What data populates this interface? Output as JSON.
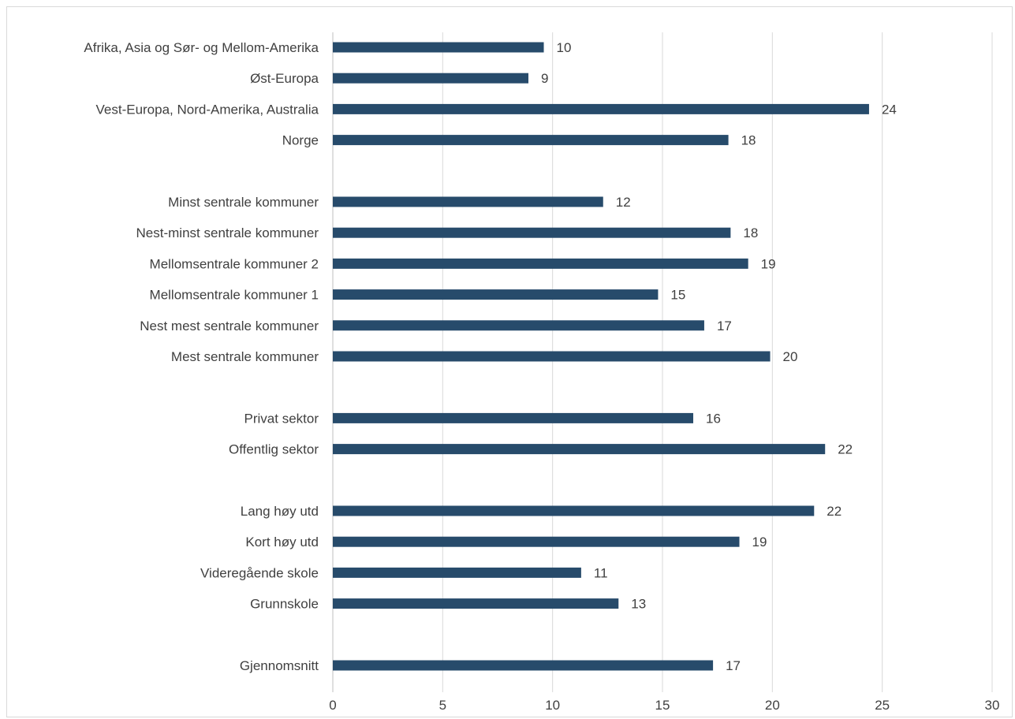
{
  "chart_data": {
    "type": "bar",
    "orientation": "horizontal",
    "colors": {
      "bar": "#274b6b",
      "grid": "#d9d9d9",
      "text": "#404040",
      "border": "#d9d9d9"
    },
    "grid": true,
    "legend": "none",
    "xlim": [
      0,
      30
    ],
    "x_ticks": [
      0,
      5,
      10,
      15,
      20,
      25,
      30
    ],
    "categories": [
      "Afrika, Asia og Sør- og Mellom-Amerika",
      "Øst-Europa",
      "Vest-Europa, Nord-Amerika, Australia",
      "Norge",
      "",
      "Minst sentrale kommuner",
      "Nest-minst sentrale kommuner",
      "Mellomsentrale kommuner 2",
      "Mellomsentrale kommuner 1",
      "Nest mest sentrale kommuner",
      "Mest sentrale kommuner",
      "",
      "Privat sektor",
      "Offentlig sektor",
      "",
      "Lang høy utd",
      "Kort høy utd",
      "Videregående skole",
      "Grunnskole",
      "",
      "Gjennomsnitt"
    ],
    "values": [
      9.6,
      8.9,
      24.4,
      18.0,
      null,
      12.3,
      18.1,
      18.9,
      14.8,
      16.9,
      19.9,
      null,
      16.4,
      22.4,
      null,
      21.9,
      18.5,
      11.3,
      13.0,
      null,
      17.3
    ],
    "data_labels": [
      "10",
      "9",
      "24",
      "18",
      "",
      "12",
      "18",
      "19",
      "15",
      "17",
      "20",
      "",
      "16",
      "22",
      "",
      "22",
      "19",
      "11",
      "13",
      "",
      "17"
    ]
  }
}
